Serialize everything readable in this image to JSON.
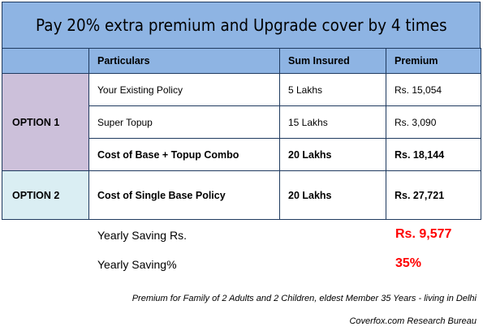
{
  "title": "Pay 20% extra premium and Upgrade cover by 4 times",
  "table": {
    "headers": {
      "particulars": "Particulars",
      "sum_insured": "Sum Insured",
      "premium": "Premium"
    },
    "option1": {
      "label": "OPTION 1",
      "rows": [
        {
          "particulars": "Your Existing Policy",
          "sum_insured": "5 Lakhs",
          "premium": "Rs. 15,054"
        },
        {
          "particulars": "Super Topup",
          "sum_insured": "15 Lakhs",
          "premium": "Rs. 3,090"
        },
        {
          "particulars": "Cost of Base + Topup Combo",
          "sum_insured": "20 Lakhs",
          "premium": "Rs. 18,144"
        }
      ]
    },
    "option2": {
      "label": "OPTION 2",
      "row": {
        "particulars": "Cost of Single Base Policy",
        "sum_insured": "20 Lakhs",
        "premium": "Rs. 27,721"
      }
    }
  },
  "savings": {
    "yearly_label": "Yearly Saving Rs.",
    "yearly_value": "Rs. 9,577",
    "percent_label": "Yearly Saving%",
    "percent_value": "35%"
  },
  "footnote": "Premium for Family of 2 Adults and 2 Children, eldest Member 35 Years - living in Delhi",
  "source": "Coverfox.com Research Bureau",
  "colors": {
    "header_blue": "#8eb4e3",
    "option1_purple": "#ccc0da",
    "option2_cyan": "#daeef3",
    "saving_red": "#ff0000"
  }
}
